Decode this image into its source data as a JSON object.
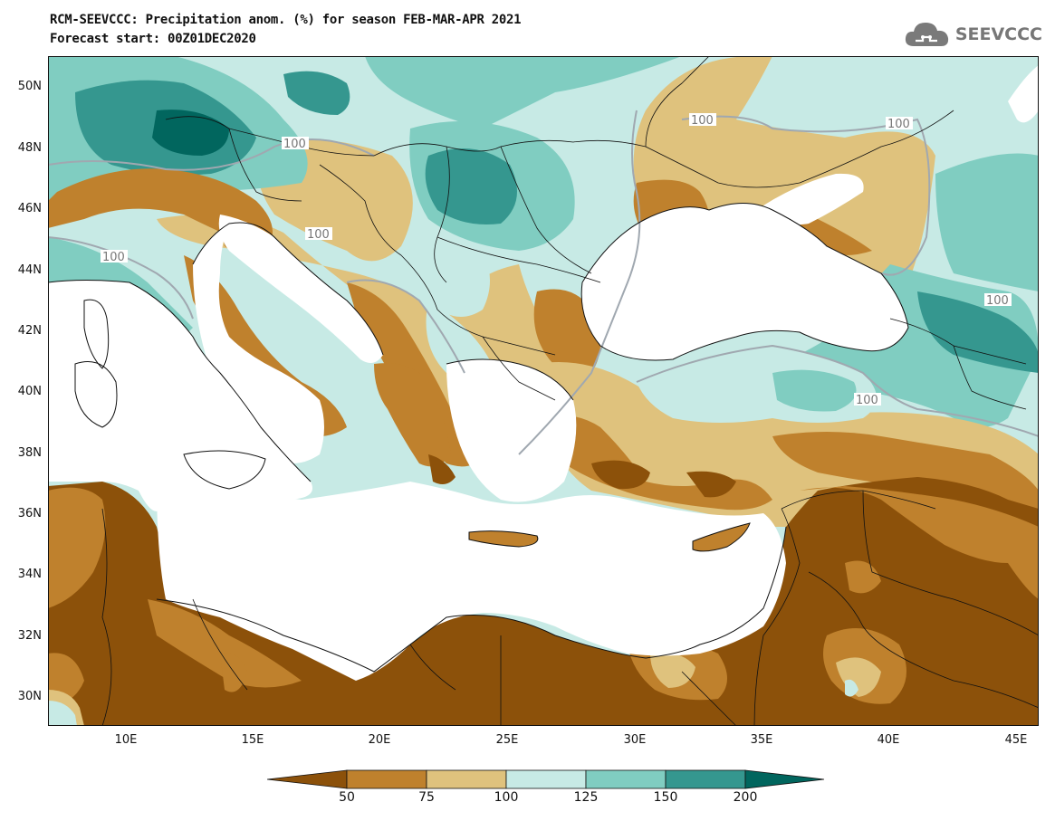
{
  "header": {
    "title_line1": "RCM-SEEVCCC: Precipitation anom. (%) for season FEB-MAR-APR 2021",
    "title_line2": "Forecast start: 00Z01DEC2020",
    "logo_text": "SEEVCCC",
    "logo_icon": "cloud-icon"
  },
  "map": {
    "variable": "Precipitation anomaly (%)",
    "season": "FEB-MAR-APR 2021",
    "lat_labels": [
      "50N",
      "48N",
      "46N",
      "44N",
      "42N",
      "40N",
      "38N",
      "36N",
      "34N",
      "32N",
      "30N"
    ],
    "lon_labels": [
      "10E",
      "15E",
      "20E",
      "25E",
      "30E",
      "35E",
      "40E",
      "45E"
    ],
    "contour_label": "100",
    "colors": {
      "lt50": "#8c510a",
      "50_75": "#bf812d",
      "75_100": "#dfc27d",
      "100_125": "#c7eae5",
      "125_150": "#80cdc1",
      "150_200": "#35978f",
      "gt200": "#01665e",
      "sea": "#ffffff",
      "contour": "#a0a8b0"
    }
  },
  "colorbar": {
    "labels": [
      "50",
      "75",
      "100",
      "125",
      "150",
      "200"
    ],
    "colors": [
      "#8c510a",
      "#bf812d",
      "#dfc27d",
      "#c7eae5",
      "#80cdc1",
      "#35978f",
      "#01665e"
    ]
  }
}
